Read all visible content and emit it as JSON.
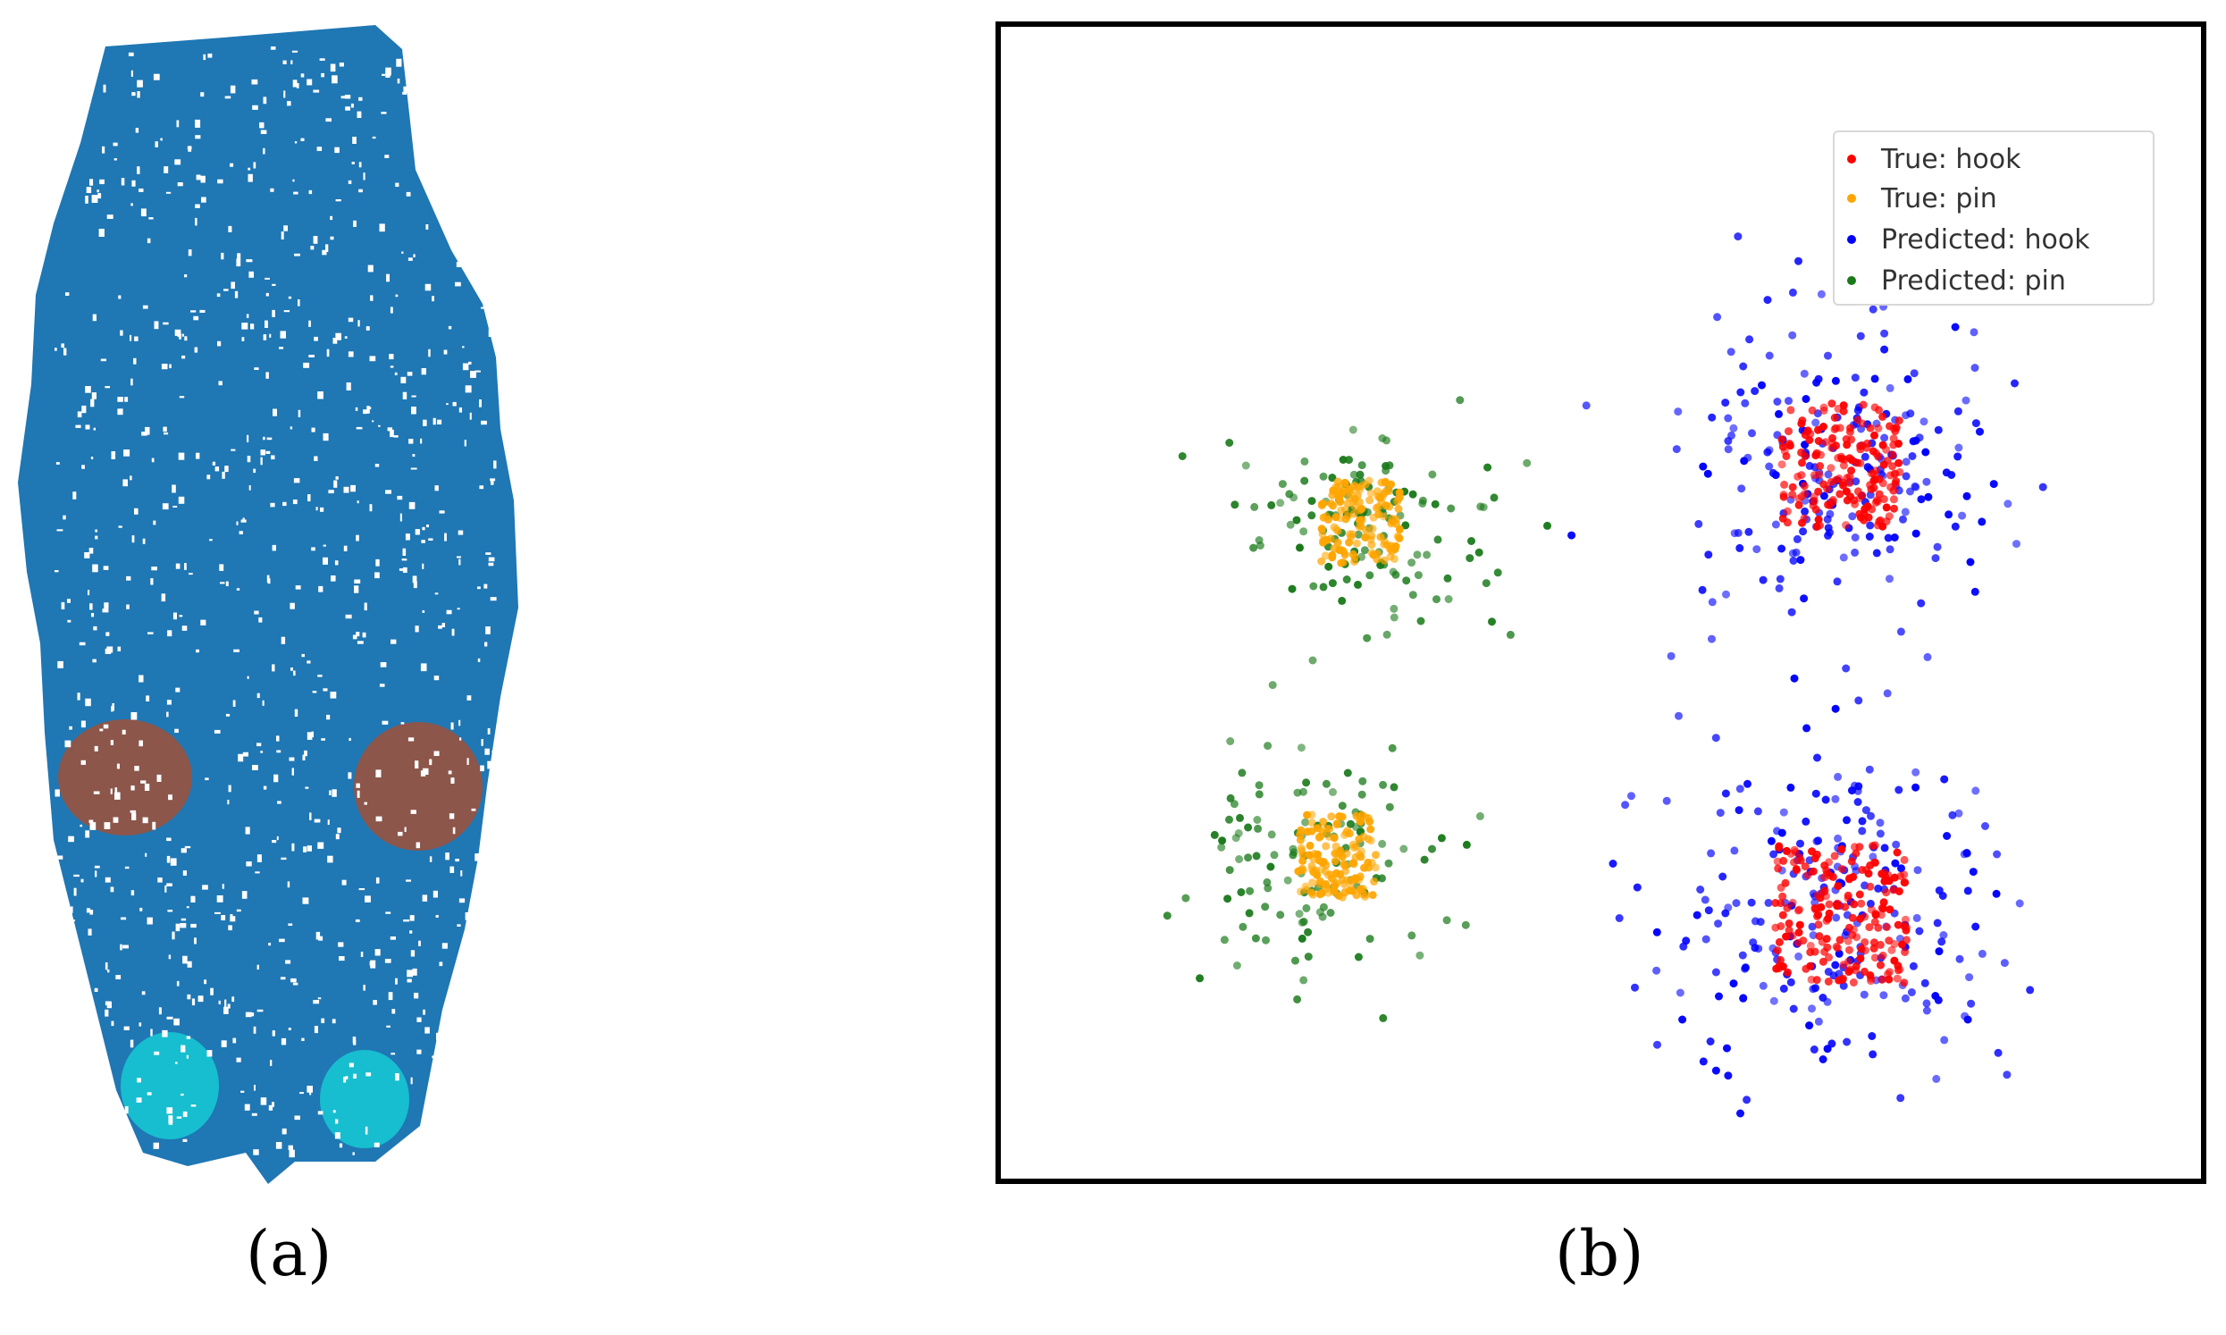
{
  "captions": {
    "a": "(a)",
    "b": "(b)"
  },
  "panel_a": {
    "colors": {
      "body": "#1f77b4",
      "hook_region": "#8c564b",
      "pin_region": "#17becf"
    }
  },
  "chart_data": {
    "type": "scatter",
    "title": "",
    "xlabel": "",
    "ylabel": "",
    "axes_visible": false,
    "grid": false,
    "legend_position": "top-right",
    "series": [
      {
        "name": "True: hook",
        "color": "#ff0000",
        "clusters": [
          {
            "cx": 0.7,
            "cy": 0.38,
            "spread": 0.045,
            "n": 180
          },
          {
            "cx": 0.7,
            "cy": 0.77,
            "spread": 0.05,
            "n": 200
          }
        ]
      },
      {
        "name": "True: pin",
        "color": "#ffa500",
        "clusters": [
          {
            "cx": 0.3,
            "cy": 0.43,
            "spread": 0.03,
            "n": 140
          },
          {
            "cx": 0.28,
            "cy": 0.72,
            "spread": 0.03,
            "n": 140
          }
        ]
      },
      {
        "name": "Predicted: hook",
        "color": "#0000ff",
        "clusters": [
          {
            "cx": 0.7,
            "cy": 0.38,
            "spread": 0.075,
            "n": 220
          },
          {
            "cx": 0.7,
            "cy": 0.77,
            "spread": 0.08,
            "n": 240
          }
        ]
      },
      {
        "name": "Predicted: pin",
        "color": "#1a7a1a",
        "clusters": [
          {
            "cx": 0.3,
            "cy": 0.43,
            "spread": 0.055,
            "n": 130
          },
          {
            "cx": 0.27,
            "cy": 0.72,
            "spread": 0.055,
            "n": 120
          }
        ]
      }
    ]
  }
}
